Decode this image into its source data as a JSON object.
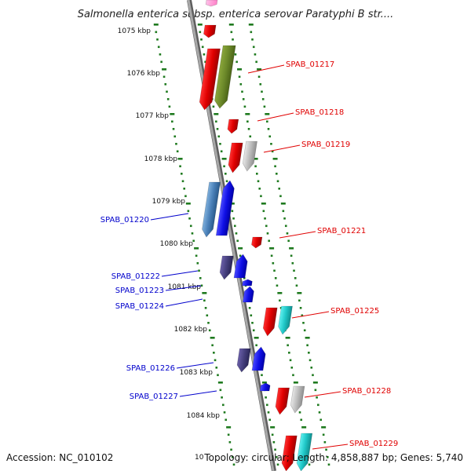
{
  "title": "Salmonella enterica subsp. enterica serovar Paratyphi B str....",
  "footer": {
    "accession": "Accession: NC_010102",
    "topology": "Topology: circular; Length: 4,858,887 bp; Genes: 5,740",
    "partial_tick": "10"
  },
  "colors": {
    "forward_strand_label": "#e00000",
    "reverse_strand_label": "#0000cc",
    "backbone": "#8c8c8c",
    "tick_marks": "#1f7a1f"
  },
  "ticks": [
    {
      "label": "1075 kbp"
    },
    {
      "label": "1076 kbp"
    },
    {
      "label": "1077 kbp"
    },
    {
      "label": "1078 kbp"
    },
    {
      "label": "1079 kbp"
    },
    {
      "label": "1080 kbp"
    },
    {
      "label": "1081 kbp"
    },
    {
      "label": "1082 kbp"
    },
    {
      "label": "1083 kbp"
    },
    {
      "label": "1084 kbp"
    }
  ],
  "gene_labels": {
    "right": [
      "SPAB_01217",
      "SPAB_01218",
      "SPAB_01219",
      "SPAB_01221",
      "SPAB_01225",
      "SPAB_01228",
      "SPAB_01229"
    ],
    "left": [
      "SPAB_01220",
      "SPAB_01222",
      "SPAB_01223",
      "SPAB_01224",
      "SPAB_01226",
      "SPAB_01227"
    ]
  }
}
